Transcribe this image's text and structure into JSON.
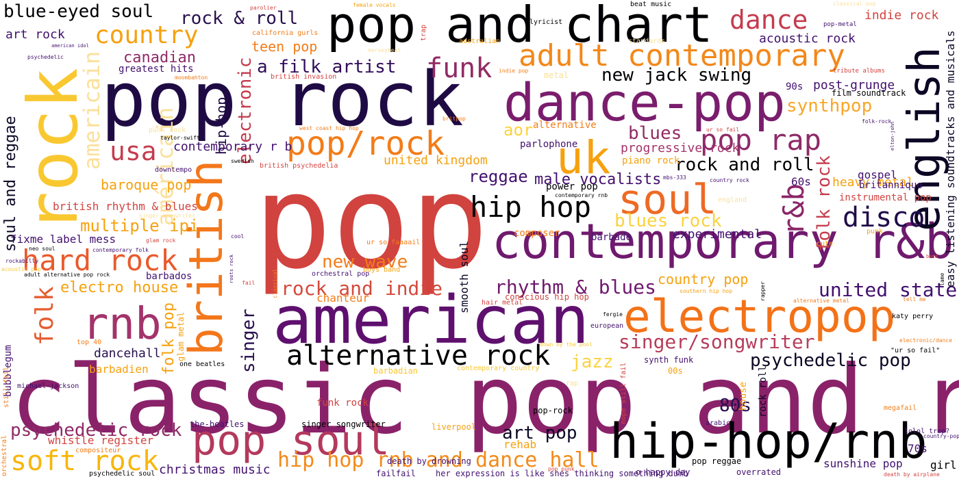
{
  "words": [
    {
      "text": "pop",
      "color": "#d1433f"
    },
    {
      "text": "classic pop and rock",
      "color": "#8a226a"
    },
    {
      "text": "pop rock",
      "color": "#1f0b44"
    },
    {
      "text": "rock",
      "color": "#f9c831"
    },
    {
      "text": "pop and chart",
      "color": "#000004"
    },
    {
      "text": "american",
      "color": "#5f106e"
    },
    {
      "text": "contemporary r&b",
      "color": "#6f1a6e"
    },
    {
      "text": "dance-pop",
      "color": "#7a1d6d"
    },
    {
      "text": "british",
      "color": "#f3771b"
    },
    {
      "text": "electropop",
      "color": "#f37218"
    },
    {
      "text": "hip-hop/rnb",
      "color": "#000004"
    },
    {
      "text": "english",
      "color": "#0b0724"
    },
    {
      "text": "uk",
      "color": "#f6a10e"
    },
    {
      "text": "adult contemporary",
      "color": "#f3881a"
    },
    {
      "text": "soul",
      "color": "#ee6a24"
    },
    {
      "text": "rnb",
      "color": "#a3336b"
    },
    {
      "text": "pop soul",
      "color": "#b3395d"
    },
    {
      "text": "hard rock",
      "color": "#e95a2c"
    },
    {
      "text": "alternative rock",
      "color": "#000004"
    },
    {
      "text": "pop/rock",
      "color": "#f37c18"
    },
    {
      "text": "hip hop",
      "color": "#000004"
    },
    {
      "text": "pop rap",
      "color": "#8e2a68"
    },
    {
      "text": "r&b",
      "color": "#8b2568"
    },
    {
      "text": "disco",
      "color": "#200c4a"
    },
    {
      "text": "country",
      "color": "#f6a110"
    },
    {
      "text": "dance",
      "color": "#c43c4e"
    },
    {
      "text": "funk",
      "color": "#922b64"
    },
    {
      "text": "americain",
      "color": "#fbe09a"
    },
    {
      "text": "américain",
      "color": "#fbe09a"
    },
    {
      "text": "soft rock",
      "color": "#f8b60c"
    },
    {
      "text": "usa",
      "color": "#c53c4d"
    },
    {
      "text": "folk",
      "color": "#e55c30"
    },
    {
      "text": "blue-eyed soul",
      "color": "#000004"
    },
    {
      "text": "rock & roll",
      "color": "#28104e"
    },
    {
      "text": "electronic",
      "color": "#c4394b"
    },
    {
      "text": "soul and reggae",
      "color": "#0b0724"
    },
    {
      "text": "psychedelic rock",
      "color": "#8e2a68"
    },
    {
      "text": "new wave",
      "color": "#f37c18"
    },
    {
      "text": "rhythm & blues",
      "color": "#6f1a6e"
    },
    {
      "text": "rock and indie",
      "color": "#d34a3c"
    },
    {
      "text": "singer/songwriter",
      "color": "#b73d5b"
    },
    {
      "text": "psychedelic pop",
      "color": "#0b0724"
    },
    {
      "text": "united states",
      "color": "#42106e"
    },
    {
      "text": "hip hop rnb and dance hall",
      "color": "#f38a1a"
    },
    {
      "text": "rock and roll",
      "color": "#000004"
    },
    {
      "text": "a filk artist",
      "color": "#310c5a"
    },
    {
      "text": "new jack swing",
      "color": "#000004"
    },
    {
      "text": "synthpop",
      "color": "#f9a628"
    },
    {
      "text": "blues rock",
      "color": "#fbd23f"
    },
    {
      "text": "blues",
      "color": "#922b64"
    },
    {
      "text": "singer",
      "color": "#28104e"
    },
    {
      "text": "jazz",
      "color": "#fbd23f"
    },
    {
      "text": "80s",
      "color": "#28104e"
    },
    {
      "text": "art pop",
      "color": "#0b0724"
    },
    {
      "text": "folk rock",
      "color": "#c53c4d"
    },
    {
      "text": "folk pop",
      "color": "#f6a10e"
    },
    {
      "text": "christmas music",
      "color": "#42106e"
    },
    {
      "text": "canadian",
      "color": "#8e2a68"
    },
    {
      "text": "multiple ipi",
      "color": "#f6a10e"
    },
    {
      "text": "electro house",
      "color": "#f6a10e"
    },
    {
      "text": "reggae",
      "color": "#42106e"
    },
    {
      "text": "male vocalists",
      "color": "#42106e"
    },
    {
      "text": "experimental",
      "color": "#42106e"
    },
    {
      "text": "country pop",
      "color": "#f6a10e"
    },
    {
      "text": "aor",
      "color": "#fbd23f"
    },
    {
      "text": "hip-hop",
      "color": "#1f0b44"
    },
    {
      "text": "baroque pop",
      "color": "#f6a10e"
    },
    {
      "text": "contemporary r b",
      "color": "#42106e"
    },
    {
      "text": "united kingdom",
      "color": "#f6a10e"
    },
    {
      "text": "heavy metal",
      "color": "#f6a10e"
    },
    {
      "text": "progressive rock",
      "color": "#a3336b"
    },
    {
      "text": "post-grunge",
      "color": "#42106e"
    },
    {
      "text": "acoustic rock",
      "color": "#42106e"
    },
    {
      "text": "indie rock",
      "color": "#d1433f"
    },
    {
      "text": "teen pop",
      "color": "#f37c18"
    },
    {
      "text": "art rock",
      "color": "#42106e"
    },
    {
      "text": "dancehall",
      "color": "#28104e"
    },
    {
      "text": "barbadien",
      "color": "#f6a10e"
    },
    {
      "text": "british rhythm & blues",
      "color": "#d1433f"
    },
    {
      "text": "fixme label mess",
      "color": "#42106e"
    },
    {
      "text": "whistle register",
      "color": "#d1433f"
    },
    {
      "text": "smooth soul",
      "color": "#0b0724"
    },
    {
      "text": "gospel",
      "color": "#42106e"
    },
    {
      "text": "60s",
      "color": "#42106e"
    },
    {
      "text": "70s",
      "color": "#42106e"
    },
    {
      "text": "90s",
      "color": "#42106e"
    },
    {
      "text": "easy listening soundtracks and musicals",
      "color": "#0b0724"
    },
    {
      "text": "sunshine pop",
      "color": "#42106e"
    },
    {
      "text": "girl",
      "color": "#000004"
    },
    {
      "text": "chanteur",
      "color": "#f37c18"
    },
    {
      "text": "rehab",
      "color": "#f6a10e"
    },
    {
      "text": "barbados",
      "color": "#42106e"
    },
    {
      "text": "greatest hits",
      "color": "#42106e"
    },
    {
      "text": "piano rock",
      "color": "#f6a10e"
    },
    {
      "text": "power pop",
      "color": "#000004"
    },
    {
      "text": "alternative",
      "color": "#f37c18"
    },
    {
      "text": "parlophone",
      "color": "#42106e"
    },
    {
      "text": "instrumental pop",
      "color": "#d1433f"
    },
    {
      "text": "britannique",
      "color": "#42106e"
    },
    {
      "text": "house",
      "color": "#f6a10e"
    },
    {
      "text": "rock roll",
      "color": "#0b0724"
    },
    {
      "text": "barbade",
      "color": "#42106e"
    },
    {
      "text": "composer",
      "color": "#f37c18"
    },
    {
      "text": "bubblegum",
      "color": "#42106e"
    },
    {
      "text": "glam metal",
      "color": "#f6a10e"
    },
    {
      "text": "funk rock",
      "color": "#d1433f"
    },
    {
      "text": "conscious hip hop",
      "color": "#d1433f"
    },
    {
      "text": "pop reggae",
      "color": "#000004"
    },
    {
      "text": "overrated",
      "color": "#42106e"
    },
    {
      "text": "o happy day",
      "color": "#42106e"
    },
    {
      "text": "pop-rock",
      "color": "#000004"
    },
    {
      "text": "death by drowning",
      "color": "#42106e"
    },
    {
      "text": "liverpool",
      "color": "#f6a10e"
    },
    {
      "text": "singer songwriter",
      "color": "#000004"
    },
    {
      "text": "the-beatles",
      "color": "#42106e"
    },
    {
      "text": "compositeur",
      "color": "#f37c18"
    },
    {
      "text": "her expression is like shes thinking something dumb",
      "color": "#42106e"
    },
    {
      "text": "failfail",
      "color": "#42106e"
    },
    {
      "text": "psychedelic soul",
      "color": "#000004"
    },
    {
      "text": "down by the pool",
      "color": "#f9c831"
    },
    {
      "text": "orchestral",
      "color": "#f37c18"
    },
    {
      "text": "still fail",
      "color": "#f37c18"
    },
    {
      "text": "michael-jackson",
      "color": "#42106e"
    },
    {
      "text": "top 40",
      "color": "#f37c18"
    },
    {
      "text": "one beatles",
      "color": "#000004"
    },
    {
      "text": "barbadian",
      "color": "#f9c831"
    },
    {
      "text": "contemporary country",
      "color": "#f9c831"
    },
    {
      "text": "nope still fail",
      "color": "#d1433f"
    },
    {
      "text": "megafail",
      "color": "#f37c18"
    },
    {
      "text": "lolol trap?",
      "color": "#42106e"
    },
    {
      "text": "country-pop",
      "color": "#42106e"
    },
    {
      "text": "death by airplane",
      "color": "#d1433f"
    },
    {
      "text": "arabic",
      "color": "#42106e"
    },
    {
      "text": "rap",
      "color": "#fbe09a"
    },
    {
      "text": "00s",
      "color": "#f6a10e"
    },
    {
      "text": "synth funk",
      "color": "#42106e"
    },
    {
      "text": "european",
      "color": "#42106e"
    },
    {
      "text": "fergie",
      "color": "#000004"
    },
    {
      "text": "hair metal",
      "color": "#d1433f"
    },
    {
      "text": "southern hip hop",
      "color": "#f6a10e"
    },
    {
      "text": "rapper",
      "color": "#000004"
    },
    {
      "text": "alternative metal",
      "color": "#f37c18"
    },
    {
      "text": "katy perry",
      "color": "#000004"
    },
    {
      "text": "\"ur so fail\"",
      "color": "#000004"
    },
    {
      "text": "electronic/dance",
      "color": "#f37c18"
    },
    {
      "text": "tell me",
      "color": "#f37c18"
    },
    {
      "text": "lame",
      "color": "#000004"
    },
    {
      "text": "band",
      "color": "#d1433f"
    },
    {
      "text": "punk",
      "color": "#f6a10e"
    },
    {
      "text": "cute",
      "color": "#f6a10e"
    },
    {
      "text": "england",
      "color": "#fbe09a"
    },
    {
      "text": "country rock",
      "color": "#42106e"
    },
    {
      "text": "contemporary rnb",
      "color": "#000004"
    },
    {
      "text": "orchestral pop",
      "color": "#42106e"
    },
    {
      "text": "boys band",
      "color": "#f6a10e"
    },
    {
      "text": "ur so faaaail",
      "color": "#f37c18"
    },
    {
      "text": "fail",
      "color": "#d1433f"
    },
    {
      "text": "classical",
      "color": "#f37c18"
    },
    {
      "text": "roots rock",
      "color": "#42106e"
    },
    {
      "text": "cool",
      "color": "#42106e"
    },
    {
      "text": "glam rock",
      "color": "#d1433f"
    },
    {
      "text": "neo soul",
      "color": "#000004"
    },
    {
      "text": "contemporary folk",
      "color": "#42106e"
    },
    {
      "text": "adult alternative pop rock",
      "color": "#000004"
    },
    {
      "text": "rockabilly",
      "color": "#42106e"
    },
    {
      "text": "acoustic pop",
      "color": "#f9c831"
    },
    {
      "text": "singer-songwriter",
      "color": "#fbe09a"
    },
    {
      "text": "punk rock",
      "color": "#fbe09a"
    },
    {
      "text": "taylor-swift",
      "color": "#000004"
    },
    {
      "text": "downtempo",
      "color": "#42106e"
    },
    {
      "text": "swedish",
      "color": "#000004"
    },
    {
      "text": "british psychedelia",
      "color": "#d1433f"
    },
    {
      "text": "west coast hip hop",
      "color": "#f37c18"
    },
    {
      "text": "britpop",
      "color": "#f37c18"
    },
    {
      "text": "moombahton",
      "color": "#f37c18"
    },
    {
      "text": "british invasion",
      "color": "#d1433f"
    },
    {
      "text": "psychedelic",
      "color": "#42106e"
    },
    {
      "text": "american idol",
      "color": "#42106e"
    },
    {
      "text": "parolier",
      "color": "#d1433f"
    },
    {
      "text": "california gurls",
      "color": "#f37c18"
    },
    {
      "text": "merseybeat",
      "color": "#fbe09a"
    },
    {
      "text": "female vocals",
      "color": "#f6a10e"
    },
    {
      "text": "trap",
      "color": "#d1433f"
    },
    {
      "text": "australian",
      "color": "#f6a10e"
    },
    {
      "text": "indie pop",
      "color": "#f37c18"
    },
    {
      "text": "metal",
      "color": "#fbe09a"
    },
    {
      "text": "beat music",
      "color": "#000004"
    },
    {
      "text": "lyricist",
      "color": "#000004"
    },
    {
      "text": "standards",
      "color": "#fbe09a"
    },
    {
      "text": "mbs-333",
      "color": "#42106e"
    },
    {
      "text": "ur so fail",
      "color": "#d1433f"
    },
    {
      "text": "folk-rock",
      "color": "#42106e"
    },
    {
      "text": "elton-john",
      "color": "#42106e"
    },
    {
      "text": "film soundtrack",
      "color": "#000004"
    },
    {
      "text": "tribute albums",
      "color": "#d1433f"
    },
    {
      "text": "pop-metal",
      "color": "#42106e"
    },
    {
      "text": "classical pop",
      "color": "#fbe09a"
    },
    {
      "text": "pop punk",
      "color": "#d1433f"
    }
  ]
}
